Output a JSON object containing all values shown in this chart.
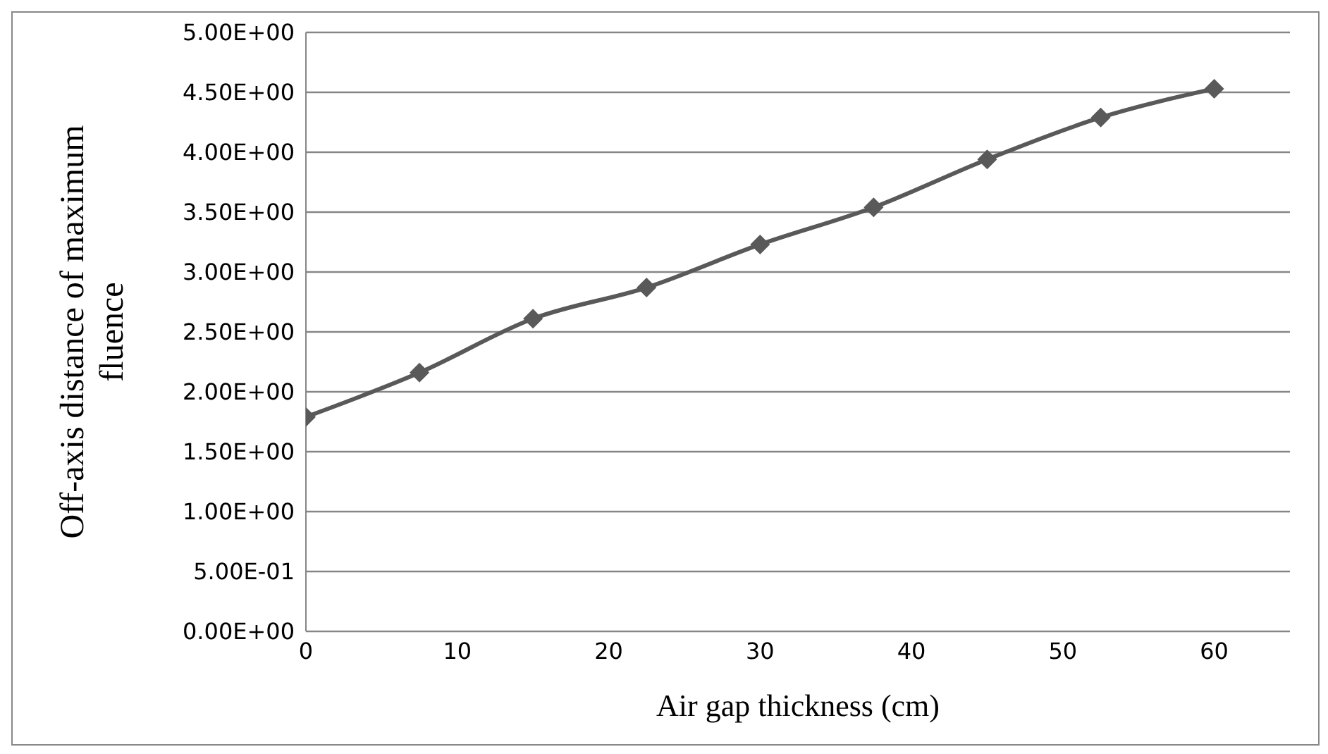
{
  "chart_data": {
    "type": "line",
    "xlabel": "Air gap thickness (cm)",
    "ylabel": "Off-axis distance of maximum fluence",
    "x": [
      0,
      7.5,
      15,
      22.5,
      30,
      37.5,
      45,
      52.5,
      60
    ],
    "series": [
      {
        "color": "#595959",
        "values": [
          1.79,
          2.16,
          2.61,
          2.87,
          3.23,
          3.54,
          3.94,
          4.29,
          4.53
        ]
      }
    ],
    "xlim": [
      0,
      65
    ],
    "xticks": [
      0,
      10,
      20,
      30,
      40,
      50,
      60
    ],
    "ylim": [
      0,
      5
    ],
    "yticks": [
      {
        "value": 0,
        "label": "0.00E+00"
      },
      {
        "value": 0.5,
        "label": "5.00E-01"
      },
      {
        "value": 1,
        "label": "1.00E+00"
      },
      {
        "value": 1.5,
        "label": "1.50E+00"
      },
      {
        "value": 2,
        "label": "2.00E+00"
      },
      {
        "value": 2.5,
        "label": "2.50E+00"
      },
      {
        "value": 3,
        "label": "3.00E+00"
      },
      {
        "value": 3.5,
        "label": "3.50E+00"
      },
      {
        "value": 4,
        "label": "4.00E+00"
      },
      {
        "value": 4.5,
        "label": "4.50E+00"
      },
      {
        "value": 5,
        "label": "5.00E+00"
      }
    ],
    "grid": "y",
    "marker": "diamond",
    "line_style": "solid"
  }
}
